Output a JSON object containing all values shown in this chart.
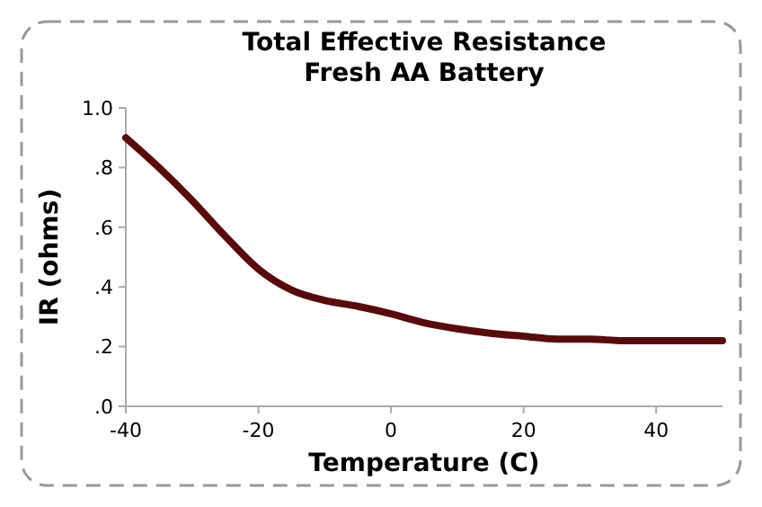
{
  "chart_data": {
    "type": "line",
    "title": "Total Effective Resistance\nFresh AA Battery",
    "xlabel": "Temperature (C)",
    "ylabel": "IR (ohms)",
    "x": [
      -40,
      -35,
      -30,
      -25,
      -20,
      -15,
      -10,
      -5,
      0,
      5,
      10,
      15,
      20,
      25,
      30,
      35,
      40,
      45,
      50
    ],
    "series": [
      {
        "color": "#5a0a0a",
        "values": [
          0.9,
          0.8,
          0.69,
          0.57,
          0.46,
          0.39,
          0.355,
          0.335,
          0.31,
          0.28,
          0.26,
          0.245,
          0.235,
          0.225,
          0.225,
          0.22,
          0.22,
          0.22,
          0.22
        ]
      }
    ],
    "xlim": [
      -40,
      50
    ],
    "ylim": [
      0,
      1
    ],
    "xticks": [
      -40,
      -20,
      0,
      20,
      40
    ],
    "yticks": [
      {
        "value": 0,
        "label": ".0"
      },
      {
        "value": 0.2,
        "label": ".2"
      },
      {
        "value": 0.4,
        "label": ".4"
      },
      {
        "value": 0.6,
        "label": ".6"
      },
      {
        "value": 0.8,
        "label": ".8"
      },
      {
        "value": 1,
        "label": "1.0"
      }
    ],
    "grid": false,
    "marker": "none",
    "line_style": "solid"
  }
}
